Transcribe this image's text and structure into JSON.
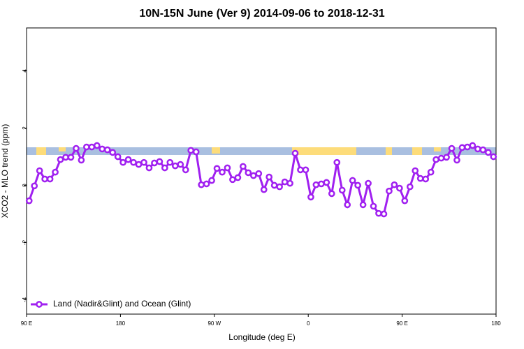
{
  "chart_data": {
    "type": "line",
    "title": "10N-15N June (Ver 9)   2014-09-06 to 2018-12-31",
    "x_label": "Longitude (deg E)",
    "y_label": "XCO2 - MLO trend (ppm)",
    "xlim": [
      90,
      540
    ],
    "ylim": [
      -4.5,
      5.5
    ],
    "xticks": [
      {
        "value": 90,
        "label": "90 E"
      },
      180,
      {
        "value": 270,
        "label": "90 W"
      },
      {
        "value": 360,
        "label": "0"
      },
      {
        "value": 450,
        "label": "90 E"
      },
      {
        "value": 540,
        "label": "180"
      }
    ],
    "yticks": [
      -4,
      -2,
      0,
      2,
      4
    ],
    "legend": "bottom-left",
    "x": [
      92.5,
      97.5,
      102.5,
      107.5,
      112.5,
      117.5,
      122.5,
      127.5,
      132.5,
      137.5,
      142.5,
      147.5,
      152.5,
      157.5,
      162.5,
      167.5,
      172.5,
      177.5,
      182.5,
      187.5,
      192.5,
      197.5,
      202.5,
      207.5,
      212.5,
      217.5,
      222.5,
      227.5,
      232.5,
      237.5,
      242.5,
      247.5,
      252.5,
      257.5,
      262.5,
      267.5,
      272.5,
      277.5,
      282.5,
      287.5,
      292.5,
      297.5,
      302.5,
      307.5,
      312.5,
      317.5,
      322.5,
      327.5,
      332.5,
      337.5,
      342.5,
      347.5,
      352.5,
      357.5,
      362.5,
      367.5,
      372.5,
      377.5,
      382.5,
      387.5,
      392.5,
      397.5,
      402.5,
      407.5,
      412.5,
      417.5,
      422.5,
      427.5,
      432.5,
      437.5,
      442.5,
      447.5,
      452.5,
      457.5,
      462.5,
      467.5,
      472.5,
      477.5,
      482.5,
      487.5,
      492.5,
      497.5,
      502.5,
      507.5,
      512.5,
      517.5,
      522.5,
      527.5,
      532.5,
      537.5
    ],
    "series": [
      {
        "name": "Land (Nadir&Glint) and Ocean (Glint)",
        "color": "#a020f0",
        "values": [
          -0.54,
          -0.02,
          0.51,
          0.22,
          0.22,
          0.46,
          0.9,
          0.98,
          0.98,
          1.29,
          0.88,
          1.34,
          1.34,
          1.39,
          1.27,
          1.24,
          1.15,
          1.0,
          0.8,
          0.9,
          0.8,
          0.73,
          0.8,
          0.61,
          0.78,
          0.83,
          0.61,
          0.8,
          0.68,
          0.73,
          0.54,
          1.22,
          1.17,
          0.02,
          0.05,
          0.17,
          0.59,
          0.46,
          0.61,
          0.2,
          0.27,
          0.66,
          0.44,
          0.34,
          0.41,
          -0.15,
          0.29,
          0,
          -0.05,
          0.12,
          0.07,
          1.12,
          0.54,
          0.54,
          -0.41,
          0.02,
          0.05,
          0.1,
          -0.29,
          0.8,
          -0.17,
          -0.68,
          0.17,
          0,
          -0.68,
          0.07,
          -0.73,
          -0.98,
          -1.0,
          -0.2,
          0.02,
          -0.1,
          -0.54,
          -0.05,
          0.51,
          0.24,
          0.22,
          0.46,
          0.9,
          0.95,
          0.98,
          1.29,
          0.88,
          1.32,
          1.34,
          1.39,
          1.27,
          1.24,
          1.15,
          1.0
        ]
      }
    ]
  }
}
